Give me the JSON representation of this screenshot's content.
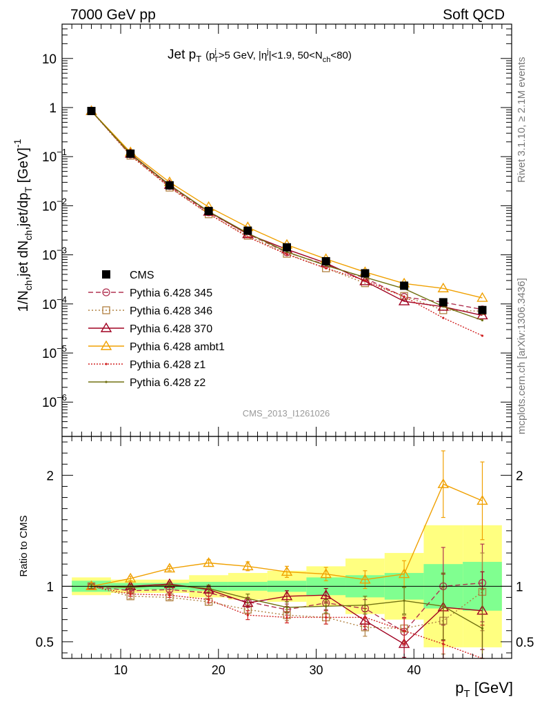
{
  "header": {
    "left": "7000 GeV pp",
    "right": "Soft QCD"
  },
  "side_labels": {
    "rivet": "Rivet 3.1.10, ≥ 2.1M events",
    "mcplots": "mcplots.cern.ch [arXiv:1306.3436]"
  },
  "watermark": "CMS_2013_I1261026",
  "main_title": {
    "jet": "Jet p",
    "jet_sub": "T",
    "cut_open": "(p",
    "cut_sup": "j",
    "cut_sub": "T",
    "cut_rest1": ">5 GeV, |η",
    "cut_sup2": "j",
    "cut_rest2": "|<1.9, 50<N",
    "cut_sub2": "ch",
    "cut_rest3": "<80)"
  },
  "axes": {
    "ylabel_top": {
      "p1": "1/N",
      "s1": "ch",
      "p2": ",jet dN",
      "s2": "ch",
      "p3": ",jet/dp",
      "s3": "T",
      "p4": " [GeV]",
      "sup": "-1"
    },
    "ylabel_bottom": "Ratio to CMS",
    "xlabel": {
      "p": "p",
      "sub": "T",
      "unit": " [GeV]"
    }
  },
  "colors": {
    "cms": "#000000",
    "p345": "#b03050",
    "p346": "#b08040",
    "p370": "#a00020",
    "ambt1": "#f0a000",
    "z1": "#d02020",
    "z2": "#707010",
    "band_inner": "#80ff90",
    "band_outer": "#ffff80"
  },
  "chart_data": {
    "type": "line",
    "x_range": [
      4.0,
      50.0
    ],
    "x_ticks": [
      10,
      20,
      30,
      40
    ],
    "top": {
      "yscale": "log",
      "y_range": [
        2e-07,
        50
      ],
      "y_ticks": [
        {
          "value": 10,
          "label": "10"
        },
        {
          "value": 1,
          "label": "1"
        },
        {
          "value": 0.1,
          "label": "10",
          "sup": "−1"
        },
        {
          "value": 0.01,
          "label": "10",
          "sup": "−2"
        },
        {
          "value": 0.001,
          "label": "10",
          "sup": "−3"
        },
        {
          "value": 0.0001,
          "label": "10",
          "sup": "−4"
        },
        {
          "value": 1e-05,
          "label": "10",
          "sup": "−5"
        },
        {
          "value": 1e-06,
          "label": "10",
          "sup": "−6"
        }
      ]
    },
    "bottom": {
      "y_range": [
        0.35,
        2.35
      ],
      "y_ticks": [
        0.5,
        1,
        2
      ]
    },
    "x": [
      7,
      11,
      15,
      19,
      23,
      27,
      31,
      35,
      39,
      43,
      47
    ],
    "bin_edges": [
      5,
      9,
      13,
      17,
      21,
      25,
      29,
      33,
      37,
      41,
      45,
      49
    ],
    "band_inner": [
      0.05,
      0.03,
      0.03,
      0.04,
      0.04,
      0.05,
      0.08,
      0.1,
      0.12,
      0.2,
      0.22
    ],
    "band_outer": [
      0.08,
      0.06,
      0.06,
      0.1,
      0.12,
      0.14,
      0.18,
      0.25,
      0.3,
      0.55,
      0.55
    ],
    "series": [
      {
        "name": "CMS",
        "key": "cms",
        "marker": "square",
        "dash": "",
        "values": [
          0.85,
          0.115,
          0.026,
          0.0078,
          0.0031,
          0.00142,
          0.00074,
          0.00042,
          0.000235,
          0.000108,
          7.5e-05
        ]
      },
      {
        "name": "Pythia 6.428 345",
        "key": "p345",
        "marker": "circle",
        "dash": "7,4",
        "ratio": [
          1.0,
          0.96,
          0.97,
          0.94,
          0.86,
          0.79,
          0.85,
          0.8,
          0.59,
          1.0,
          1.03
        ],
        "ratio_err": [
          0.02,
          0.02,
          0.02,
          0.03,
          0.04,
          0.05,
          0.06,
          0.08,
          0.12,
          0.35,
          0.35
        ]
      },
      {
        "name": "Pythia 6.428 346",
        "key": "p346",
        "marker": "square-open",
        "dash": "2,3",
        "ratio": [
          1.0,
          0.91,
          0.9,
          0.86,
          0.79,
          0.74,
          0.72,
          0.63,
          0.62,
          0.69,
          0.95
        ],
        "ratio_err": [
          0.02,
          0.02,
          0.02,
          0.03,
          0.04,
          0.05,
          0.06,
          0.08,
          0.12,
          0.3,
          0.35
        ]
      },
      {
        "name": "Pythia 6.428 370",
        "key": "p370",
        "marker": "triangle",
        "dash": "",
        "ratio": [
          1.0,
          1.0,
          1.02,
          0.97,
          0.85,
          0.91,
          0.92,
          0.69,
          0.48,
          0.81,
          0.78
        ],
        "ratio_err": [
          0.02,
          0.02,
          0.02,
          0.03,
          0.04,
          0.05,
          0.06,
          0.08,
          0.12,
          0.3,
          0.35
        ]
      },
      {
        "name": "Pythia 6.428 ambt1",
        "key": "ambt1",
        "marker": "triangle",
        "dash": "",
        "ratio": [
          1.0,
          1.07,
          1.16,
          1.21,
          1.18,
          1.13,
          1.11,
          1.06,
          1.11,
          1.92,
          1.77
        ],
        "ratio_err": [
          0.02,
          0.02,
          0.02,
          0.03,
          0.04,
          0.05,
          0.06,
          0.08,
          0.12,
          0.3,
          0.35
        ]
      },
      {
        "name": "Pythia 6.428 z1",
        "key": "z1",
        "marker": "dot",
        "dash": "2,2",
        "ratio": [
          1.0,
          0.93,
          0.92,
          0.88,
          0.74,
          0.72,
          0.72,
          0.72,
          0.6,
          0.48,
          0.3
        ],
        "ratio_err": [
          0.02,
          0.02,
          0.02,
          0.03,
          0.04,
          0.05,
          0.06,
          0.08,
          0.12,
          0.3,
          0.35
        ]
      },
      {
        "name": "Pythia 6.428 z2",
        "key": "z2",
        "marker": "dot",
        "dash": "",
        "ratio": [
          1.0,
          0.99,
          1.01,
          0.98,
          0.89,
          0.81,
          0.82,
          0.83,
          0.87,
          0.82,
          0.62
        ],
        "ratio_err": [
          0.02,
          0.02,
          0.02,
          0.03,
          0.04,
          0.05,
          0.06,
          0.08,
          0.12,
          0.3,
          0.35
        ]
      }
    ]
  }
}
